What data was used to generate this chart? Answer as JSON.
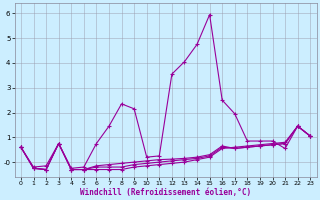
{
  "xlabel": "Windchill (Refroidissement éolien,°C)",
  "background_color": "#cceeff",
  "line_color": "#990099",
  "x_ticks": [
    0,
    1,
    2,
    3,
    4,
    5,
    6,
    7,
    8,
    9,
    10,
    11,
    12,
    13,
    14,
    15,
    16,
    17,
    18,
    19,
    20,
    21,
    22,
    23
  ],
  "y_ticks": [
    0,
    1,
    2,
    3,
    4,
    5,
    6
  ],
  "y_tick_labels": [
    "-0",
    "1",
    "2",
    "3",
    "4",
    "5",
    "6"
  ],
  "ylim": [
    -0.6,
    6.4
  ],
  "xlim": [
    -0.5,
    23.5
  ],
  "series1_x": [
    0,
    1,
    2,
    3,
    4,
    5,
    6,
    7,
    8,
    9,
    10,
    11,
    12,
    13,
    14,
    15,
    16,
    17,
    18,
    19,
    20,
    21,
    22,
    23
  ],
  "series1_y": [
    0.6,
    -0.2,
    -0.15,
    0.75,
    -0.25,
    -0.2,
    0.75,
    1.45,
    2.35,
    2.15,
    0.2,
    0.25,
    3.55,
    4.05,
    4.75,
    5.95,
    2.5,
    1.95,
    0.85,
    0.85,
    0.85,
    0.55,
    1.45,
    1.05
  ],
  "series2_x": [
    0,
    1,
    2,
    3,
    4,
    5,
    6,
    7,
    8,
    9,
    10,
    11,
    12,
    13,
    14,
    15,
    16,
    17,
    18,
    19,
    20,
    21,
    22,
    23
  ],
  "series2_y": [
    0.6,
    -0.25,
    -0.3,
    0.75,
    -0.3,
    -0.3,
    -0.3,
    -0.3,
    -0.3,
    -0.2,
    -0.15,
    -0.1,
    -0.05,
    0.0,
    0.1,
    0.2,
    0.55,
    0.6,
    0.65,
    0.7,
    0.75,
    0.8,
    1.45,
    1.05
  ],
  "series3_x": [
    0,
    1,
    2,
    3,
    4,
    5,
    6,
    7,
    8,
    9,
    10,
    11,
    12,
    13,
    14,
    15,
    16,
    17,
    18,
    19,
    20,
    21,
    22,
    23
  ],
  "series3_y": [
    0.6,
    -0.25,
    -0.3,
    0.75,
    -0.3,
    -0.3,
    -0.2,
    -0.2,
    -0.2,
    -0.1,
    -0.05,
    0.0,
    0.05,
    0.1,
    0.15,
    0.25,
    0.6,
    0.55,
    0.6,
    0.65,
    0.7,
    0.75,
    1.45,
    1.05
  ],
  "series4_x": [
    0,
    1,
    2,
    3,
    4,
    5,
    6,
    7,
    8,
    9,
    10,
    11,
    12,
    13,
    14,
    15,
    16,
    17,
    18,
    19,
    20,
    21,
    22,
    23
  ],
  "series4_y": [
    0.6,
    -0.25,
    -0.3,
    0.75,
    -0.3,
    -0.3,
    -0.15,
    -0.1,
    -0.05,
    0.0,
    0.05,
    0.1,
    0.12,
    0.15,
    0.2,
    0.3,
    0.65,
    0.55,
    0.6,
    0.65,
    0.7,
    0.75,
    1.45,
    1.05
  ]
}
